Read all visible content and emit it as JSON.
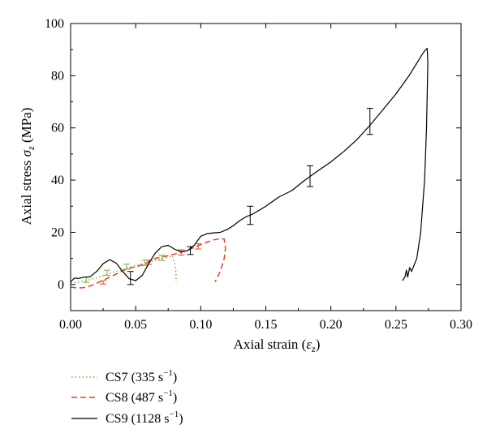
{
  "chart_data": {
    "type": "line",
    "xlabel": "Axial strain (ε_z)",
    "xlabel_parts": {
      "pre": "Axial strain (",
      "sym": "ε",
      "sub": "z",
      "post": ")"
    },
    "ylabel": "Axial stress σ_z (MPa)",
    "ylabel_parts": {
      "pre": "Axial stress ",
      "sym": "σ",
      "sub": "z",
      "post": " (MPa)"
    },
    "xlim": [
      0.0,
      0.3
    ],
    "ylim": [
      -10,
      100
    ],
    "x_ticks": [
      0.0,
      0.05,
      0.1,
      0.15,
      0.2,
      0.25,
      0.3
    ],
    "x_tick_labels": [
      "0.00",
      "0.05",
      "0.10",
      "0.15",
      "0.20",
      "0.25",
      "0.30"
    ],
    "y_ticks": [
      0,
      20,
      40,
      60,
      80,
      100
    ],
    "y_tick_labels": [
      "0",
      "20",
      "40",
      "60",
      "80",
      "100"
    ],
    "grid": false,
    "legend_position": "bottom-left outside",
    "series": [
      {
        "name": "CS7 (335 s⁻¹)",
        "legend_parts": {
          "pre": "CS7 (335 s",
          "sup": "−1",
          "post": ")"
        },
        "color": "#7cb342",
        "dash": "dotted",
        "points": [
          [
            0.0,
            0.5
          ],
          [
            0.005,
            0.8
          ],
          [
            0.01,
            1.3
          ],
          [
            0.015,
            1.9
          ],
          [
            0.02,
            2.6
          ],
          [
            0.025,
            3.4
          ],
          [
            0.03,
            4.2
          ],
          [
            0.035,
            5.0
          ],
          [
            0.04,
            5.8
          ],
          [
            0.045,
            6.6
          ],
          [
            0.05,
            7.3
          ],
          [
            0.055,
            7.9
          ],
          [
            0.06,
            8.5
          ],
          [
            0.065,
            9.2
          ],
          [
            0.07,
            9.9
          ],
          [
            0.075,
            10.6
          ],
          [
            0.078,
            11.0
          ],
          [
            0.08,
            8.0
          ],
          [
            0.081,
            4.5
          ],
          [
            0.081,
            1.0
          ]
        ],
        "error_bars": [
          [
            0.012,
            1.8,
            1.0
          ],
          [
            0.028,
            4.5,
            1.0
          ],
          [
            0.043,
            6.8,
            1.0
          ],
          [
            0.057,
            8.3,
            1.0
          ],
          [
            0.07,
            10.2,
            1.0
          ]
        ]
      },
      {
        "name": "CS8 (487 s⁻¹)",
        "legend_parts": {
          "pre": "CS8 (487 s",
          "sup": "−1",
          "post": ")"
        },
        "color": "#e8441c",
        "dash": "dashed",
        "points": [
          [
            0.0,
            -1.0
          ],
          [
            0.005,
            -1.3
          ],
          [
            0.01,
            -1.2
          ],
          [
            0.015,
            -0.6
          ],
          [
            0.02,
            0.5
          ],
          [
            0.025,
            1.6
          ],
          [
            0.03,
            2.8
          ],
          [
            0.035,
            4.0
          ],
          [
            0.04,
            5.3
          ],
          [
            0.045,
            6.2
          ],
          [
            0.05,
            6.8
          ],
          [
            0.055,
            7.5
          ],
          [
            0.06,
            8.7
          ],
          [
            0.065,
            10.0
          ],
          [
            0.07,
            10.6
          ],
          [
            0.075,
            11.0
          ],
          [
            0.08,
            11.7
          ],
          [
            0.085,
            12.4
          ],
          [
            0.09,
            13.2
          ],
          [
            0.095,
            14.2
          ],
          [
            0.1,
            15.3
          ],
          [
            0.105,
            16.3
          ],
          [
            0.11,
            17.1
          ],
          [
            0.115,
            17.6
          ],
          [
            0.118,
            17.4
          ],
          [
            0.119,
            14.0
          ],
          [
            0.118,
            10.0
          ],
          [
            0.115,
            5.0
          ],
          [
            0.111,
            1.0
          ]
        ],
        "error_bars": [
          [
            0.025,
            0.8,
            0.6
          ],
          [
            0.06,
            8.5,
            0.8
          ],
          [
            0.085,
            12.3,
            1.0
          ],
          [
            0.098,
            14.6,
            1.0
          ]
        ]
      },
      {
        "name": "CS9 (1128 s⁻¹)",
        "legend_parts": {
          "pre": "CS9 (1128 s",
          "sup": "−1",
          "post": ")"
        },
        "color": "#000000",
        "dash": "solid",
        "points": [
          [
            0.0,
            1.0
          ],
          [
            0.003,
            2.5
          ],
          [
            0.006,
            2.3
          ],
          [
            0.01,
            2.8
          ],
          [
            0.015,
            3.0
          ],
          [
            0.02,
            5.0
          ],
          [
            0.025,
            8.0
          ],
          [
            0.03,
            9.5
          ],
          [
            0.035,
            8.2
          ],
          [
            0.04,
            5.0
          ],
          [
            0.045,
            2.2
          ],
          [
            0.05,
            1.5
          ],
          [
            0.055,
            3.5
          ],
          [
            0.06,
            8.0
          ],
          [
            0.065,
            12.0
          ],
          [
            0.07,
            14.5
          ],
          [
            0.075,
            15.0
          ],
          [
            0.08,
            13.5
          ],
          [
            0.085,
            12.5
          ],
          [
            0.09,
            13.0
          ],
          [
            0.095,
            15.0
          ],
          [
            0.1,
            18.5
          ],
          [
            0.105,
            19.5
          ],
          [
            0.11,
            19.8
          ],
          [
            0.115,
            20.0
          ],
          [
            0.12,
            21.0
          ],
          [
            0.125,
            22.5
          ],
          [
            0.13,
            24.5
          ],
          [
            0.135,
            26.0
          ],
          [
            0.14,
            27.0
          ],
          [
            0.145,
            28.5
          ],
          [
            0.15,
            30.0
          ],
          [
            0.16,
            33.5
          ],
          [
            0.17,
            36.0
          ],
          [
            0.18,
            40.0
          ],
          [
            0.19,
            43.5
          ],
          [
            0.2,
            47.0
          ],
          [
            0.21,
            51.0
          ],
          [
            0.22,
            55.5
          ],
          [
            0.23,
            61.0
          ],
          [
            0.24,
            67.0
          ],
          [
            0.25,
            73.0
          ],
          [
            0.26,
            80.0
          ],
          [
            0.265,
            84.0
          ],
          [
            0.27,
            88.0
          ],
          [
            0.272,
            89.5
          ],
          [
            0.274,
            90.5
          ],
          [
            0.2745,
            85.0
          ],
          [
            0.2735,
            60.0
          ],
          [
            0.272,
            40.0
          ],
          [
            0.269,
            20.0
          ],
          [
            0.266,
            10.0
          ],
          [
            0.262,
            5.0
          ],
          [
            0.2605,
            6.5
          ],
          [
            0.259,
            2.8
          ],
          [
            0.258,
            5.5
          ],
          [
            0.257,
            3.0
          ],
          [
            0.255,
            1.5
          ]
        ],
        "error_bars": [
          [
            0.046,
            2.5,
            2.5
          ],
          [
            0.092,
            13.0,
            1.5
          ],
          [
            0.138,
            26.5,
            3.5
          ],
          [
            0.184,
            41.5,
            4.0
          ],
          [
            0.23,
            62.5,
            5.0
          ]
        ]
      }
    ]
  }
}
